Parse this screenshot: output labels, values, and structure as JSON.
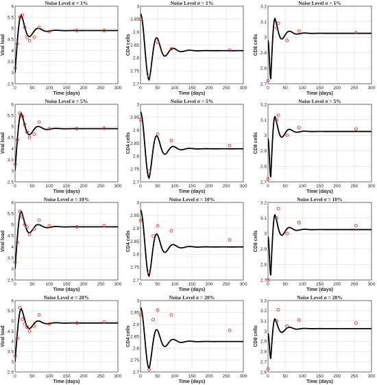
{
  "figure": {
    "colors": {
      "model_line": "#000000",
      "data_points": "#e8302a",
      "grid": "#dedede",
      "axes": "#333333"
    },
    "chart_type_note": "3 columns (Viral load, CD4 cells, CD8 cells) x 4 rows (noise levels)"
  },
  "chart_data": [
    {
      "type": "line",
      "title": "Noise Level σ = 1%",
      "xlabel": "Time (days)",
      "ylabel": "Viral load",
      "xlim": [
        0,
        300
      ],
      "ylim": [
        2.5,
        6
      ],
      "xticks": [
        0,
        50,
        100,
        150,
        200,
        250,
        300
      ],
      "yticks": [
        2.5,
        3,
        3.5,
        4,
        4.5,
        5,
        5.5,
        6
      ],
      "grid": true,
      "series": [
        {
          "kind": "line",
          "model": "viral"
        },
        {
          "kind": "scatter",
          "x": [
            0,
            7,
            14,
            21,
            28,
            35,
            42,
            56,
            70,
            100,
            180,
            260
          ],
          "y": [
            3.2,
            4.3,
            5.5,
            5.6,
            5.05,
            4.6,
            4.45,
            4.6,
            5.05,
            4.85,
            4.9,
            4.9
          ]
        }
      ]
    },
    {
      "type": "line",
      "title": "Noise Level σ = 1%",
      "xlabel": "Time (days)",
      "ylabel": "CD4 cells",
      "xlim": [
        0,
        300
      ],
      "ylim": [
        2.7,
        3
      ],
      "xticks": [
        0,
        50,
        100,
        150,
        200,
        250,
        300
      ],
      "yticks": [
        2.7,
        2.75,
        2.8,
        2.85,
        2.9,
        2.95,
        3
      ],
      "grid": true,
      "series": [
        {
          "kind": "line",
          "model": "cd4"
        },
        {
          "kind": "scatter",
          "x": [
            0,
            25,
            50,
            90,
            260
          ],
          "y": [
            2.95,
            2.73,
            2.86,
            2.835,
            2.83
          ]
        }
      ]
    },
    {
      "type": "line",
      "title": "Noise Level σ = 1%",
      "xlabel": "Time (days)",
      "ylabel": "CD8 cells",
      "xlim": [
        0,
        300
      ],
      "ylim": [
        2.7,
        3.2
      ],
      "xticks": [
        0,
        50,
        100,
        150,
        200,
        250,
        300
      ],
      "yticks": [
        2.7,
        2.8,
        2.9,
        3,
        3.1,
        3.2
      ],
      "grid": true,
      "series": [
        {
          "kind": "line",
          "model": "cd8"
        },
        {
          "kind": "scatter",
          "x": [
            0,
            25,
            30,
            55,
            90,
            255
          ],
          "y": [
            2.72,
            3.06,
            3.09,
            2.98,
            3.04,
            3.03
          ]
        }
      ]
    },
    {
      "type": "line",
      "title": "Noise Level σ = 5%",
      "xlabel": "Time (days)",
      "ylabel": "Viral load",
      "xlim": [
        0,
        300
      ],
      "ylim": [
        2.5,
        6
      ],
      "xticks": [
        0,
        50,
        100,
        150,
        200,
        250,
        300
      ],
      "yticks": [
        2.5,
        3,
        3.5,
        4,
        4.5,
        5,
        5.5,
        6
      ],
      "grid": true,
      "series": [
        {
          "kind": "line",
          "model": "viral"
        },
        {
          "kind": "scatter",
          "x": [
            0,
            7,
            14,
            21,
            28,
            35,
            42,
            56,
            70,
            100,
            180,
            260
          ],
          "y": [
            3.3,
            4.4,
            5.6,
            5.45,
            5.1,
            4.75,
            4.5,
            4.65,
            5.2,
            4.9,
            4.9,
            4.92
          ]
        }
      ]
    },
    {
      "type": "line",
      "title": "Noise Level σ = 5%",
      "xlabel": "Time (days)",
      "ylabel": "CD4 cells",
      "xlim": [
        0,
        300
      ],
      "ylim": [
        2.7,
        3
      ],
      "xticks": [
        0,
        50,
        100,
        150,
        200,
        250,
        300
      ],
      "yticks": [
        2.7,
        2.75,
        2.8,
        2.85,
        2.9,
        2.95,
        3
      ],
      "grid": true,
      "series": [
        {
          "kind": "line",
          "model": "cd4"
        },
        {
          "kind": "scatter",
          "x": [
            0,
            25,
            50,
            90,
            260
          ],
          "y": [
            2.94,
            2.74,
            2.885,
            2.86,
            2.84
          ]
        }
      ]
    },
    {
      "type": "line",
      "title": "Noise Level σ = 5%",
      "xlabel": "Time (days)",
      "ylabel": "CD8 cells",
      "xlim": [
        0,
        300
      ],
      "ylim": [
        2.7,
        3.2
      ],
      "xticks": [
        0,
        50,
        100,
        150,
        200,
        250,
        300
      ],
      "yticks": [
        2.7,
        2.8,
        2.9,
        3,
        3.1,
        3.2
      ],
      "grid": true,
      "series": [
        {
          "kind": "line",
          "model": "cd8"
        },
        {
          "kind": "scatter",
          "x": [
            0,
            25,
            30,
            55,
            90,
            255
          ],
          "y": [
            2.72,
            3.1,
            3.13,
            3.0,
            3.05,
            3.04
          ]
        }
      ]
    },
    {
      "type": "line",
      "title": "Noise Level σ = 10%",
      "xlabel": "Time (days)",
      "ylabel": "Viral load",
      "xlim": [
        0,
        300
      ],
      "ylim": [
        2.5,
        6
      ],
      "xticks": [
        0,
        50,
        100,
        150,
        200,
        250,
        300
      ],
      "yticks": [
        2.5,
        3,
        3.5,
        4,
        4.5,
        5,
        5.5,
        6
      ],
      "grid": true,
      "series": [
        {
          "kind": "line",
          "model": "viral"
        },
        {
          "kind": "scatter",
          "x": [
            0,
            7,
            14,
            21,
            28,
            35,
            42,
            56,
            70,
            100,
            180,
            260
          ],
          "y": [
            3.3,
            4.2,
            5.6,
            5.35,
            5.0,
            4.9,
            4.55,
            4.8,
            5.2,
            4.95,
            4.9,
            4.95
          ]
        }
      ]
    },
    {
      "type": "line",
      "title": "Noise Level σ = 10%",
      "xlabel": "Time (days)",
      "ylabel": "CD4 cells",
      "xlim": [
        0,
        300
      ],
      "ylim": [
        2.7,
        3
      ],
      "xticks": [
        0,
        50,
        100,
        150,
        200,
        250,
        300
      ],
      "yticks": [
        2.7,
        2.75,
        2.8,
        2.85,
        2.9,
        2.95,
        3
      ],
      "grid": true,
      "series": [
        {
          "kind": "line",
          "model": "cd4"
        },
        {
          "kind": "scatter",
          "x": [
            0,
            25,
            37,
            50,
            90,
            260
          ],
          "y": [
            2.93,
            2.73,
            2.87,
            2.91,
            2.89,
            2.855
          ]
        }
      ]
    },
    {
      "type": "line",
      "title": "Noise Level σ = 10%",
      "xlabel": "Time (days)",
      "ylabel": "CD8 cells",
      "xlim": [
        0,
        300
      ],
      "ylim": [
        2.7,
        3.2
      ],
      "xticks": [
        0,
        50,
        100,
        150,
        200,
        250,
        300
      ],
      "yticks": [
        2.7,
        2.8,
        2.9,
        3,
        3.1,
        3.2
      ],
      "grid": true,
      "series": [
        {
          "kind": "line",
          "model": "cd8"
        },
        {
          "kind": "scatter",
          "x": [
            0,
            25,
            30,
            55,
            90,
            255
          ],
          "y": [
            2.7,
            3.1,
            3.16,
            3.0,
            3.07,
            3.05
          ]
        }
      ]
    },
    {
      "type": "line",
      "title": "Noise Level σ = 20%",
      "xlabel": "Time (days)",
      "ylabel": "Viral load",
      "xlim": [
        0,
        300
      ],
      "ylim": [
        2.5,
        6
      ],
      "xticks": [
        0,
        50,
        100,
        150,
        200,
        250,
        300
      ],
      "yticks": [
        2.5,
        3,
        3.5,
        4,
        4.5,
        5,
        5.5,
        6
      ],
      "grid": true,
      "series": [
        {
          "kind": "line",
          "model": "viral"
        },
        {
          "kind": "scatter",
          "x": [
            0,
            7,
            14,
            21,
            28,
            35,
            42,
            56,
            70,
            100,
            180,
            260
          ],
          "y": [
            3.3,
            4.15,
            5.65,
            5.1,
            4.85,
            4.7,
            4.5,
            4.75,
            5.3,
            4.85,
            4.9,
            4.95
          ]
        }
      ]
    },
    {
      "type": "line",
      "title": "Noise Level σ = 20%",
      "xlabel": "Time (days)",
      "ylabel": "CD4 cells",
      "xlim": [
        0,
        300
      ],
      "ylim": [
        2.7,
        3
      ],
      "xticks": [
        0,
        50,
        100,
        150,
        200,
        250,
        300
      ],
      "yticks": [
        2.7,
        2.75,
        2.8,
        2.85,
        2.9,
        2.95,
        3
      ],
      "grid": true,
      "series": [
        {
          "kind": "line",
          "model": "cd4"
        },
        {
          "kind": "scatter",
          "x": [
            0,
            25,
            37,
            50,
            90,
            260
          ],
          "y": [
            2.94,
            2.71,
            2.92,
            2.96,
            2.94,
            2.875
          ]
        }
      ]
    },
    {
      "type": "line",
      "title": "Noise Level σ = 20%",
      "xlabel": "Time (days)",
      "ylabel": "CD8 cells",
      "xlim": [
        0,
        300
      ],
      "ylim": [
        2.6,
        3.3
      ],
      "xticks": [
        0,
        50,
        100,
        150,
        200,
        250,
        300
      ],
      "yticks": [
        2.6,
        2.7,
        2.8,
        2.9,
        3,
        3.1,
        3.2,
        3.3
      ],
      "grid": true,
      "series": [
        {
          "kind": "line",
          "model": "cd8"
        },
        {
          "kind": "scatter",
          "x": [
            0,
            25,
            30,
            55,
            90,
            255
          ],
          "y": [
            2.63,
            3.1,
            3.21,
            3.05,
            3.11,
            3.08
          ]
        }
      ]
    }
  ]
}
